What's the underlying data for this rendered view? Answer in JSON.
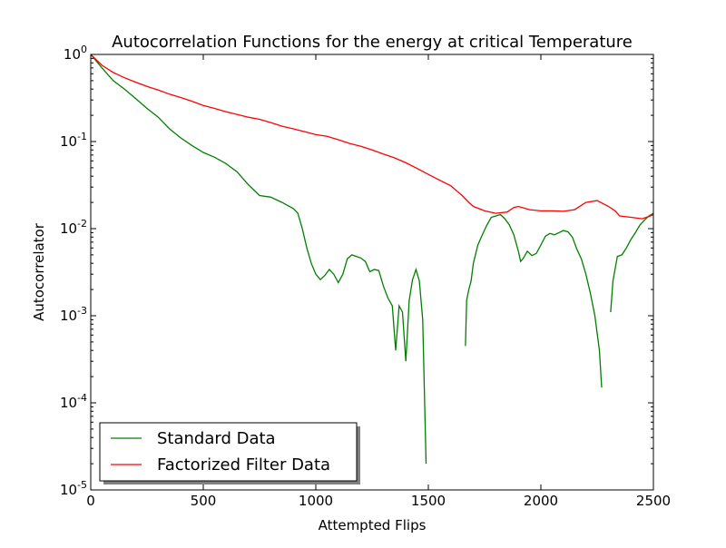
{
  "chart_data": {
    "type": "line",
    "title": "Autocorrelation Functions for the energy at critical Temperature",
    "xlabel": "Attempted Flips",
    "ylabel": "Autocorrelator",
    "xlim": [
      0,
      2500
    ],
    "ylim": [
      1e-05,
      1
    ],
    "yscale": "log",
    "grid": false,
    "legend_position": "lower-left",
    "x_ticks": [
      {
        "value": 0,
        "label": "0"
      },
      {
        "value": 500,
        "label": "500"
      },
      {
        "value": 1000,
        "label": "1000"
      },
      {
        "value": 1500,
        "label": "1500"
      },
      {
        "value": 2000,
        "label": "2000"
      },
      {
        "value": 2500,
        "label": "2500"
      }
    ],
    "y_ticks": [
      {
        "value": 1,
        "base": "10",
        "exp": "0"
      },
      {
        "value": 0.1,
        "base": "10",
        "exp": "-1"
      },
      {
        "value": 0.01,
        "base": "10",
        "exp": "-2"
      },
      {
        "value": 0.001,
        "base": "10",
        "exp": "-3"
      },
      {
        "value": 0.0001,
        "base": "10",
        "exp": "-4"
      },
      {
        "value": 1e-05,
        "base": "10",
        "exp": "-5"
      }
    ],
    "series": [
      {
        "name": "Standard Data",
        "color": "#008000",
        "segments": [
          [
            [
              0,
              1.0
            ],
            [
              50,
              0.7
            ],
            [
              100,
              0.5
            ],
            [
              150,
              0.4
            ],
            [
              200,
              0.31
            ],
            [
              250,
              0.24
            ],
            [
              300,
              0.19
            ],
            [
              350,
              0.14
            ],
            [
              400,
              0.11
            ],
            [
              450,
              0.09
            ],
            [
              500,
              0.075
            ],
            [
              550,
              0.066
            ],
            [
              600,
              0.056
            ],
            [
              650,
              0.045
            ],
            [
              700,
              0.032
            ],
            [
              750,
              0.024
            ],
            [
              800,
              0.023
            ],
            [
              850,
              0.02
            ],
            [
              900,
              0.017
            ],
            [
              920,
              0.015
            ],
            [
              940,
              0.01
            ],
            [
              960,
              0.006
            ],
            [
              980,
              0.004
            ],
            [
              1000,
              0.003
            ],
            [
              1020,
              0.0026
            ],
            [
              1040,
              0.0029
            ],
            [
              1060,
              0.0034
            ],
            [
              1080,
              0.003
            ],
            [
              1100,
              0.0024
            ],
            [
              1120,
              0.003
            ],
            [
              1140,
              0.0045
            ],
            [
              1160,
              0.005
            ],
            [
              1180,
              0.0048
            ],
            [
              1200,
              0.0046
            ],
            [
              1220,
              0.0042
            ],
            [
              1240,
              0.0032
            ],
            [
              1260,
              0.0034
            ],
            [
              1280,
              0.0033
            ],
            [
              1300,
              0.0022
            ],
            [
              1320,
              0.0016
            ],
            [
              1340,
              0.0013
            ],
            [
              1355,
              0.0004
            ],
            [
              1370,
              0.0013
            ],
            [
              1385,
              0.0011
            ],
            [
              1400,
              0.0003
            ],
            [
              1415,
              0.0015
            ],
            [
              1430,
              0.0026
            ],
            [
              1445,
              0.0034
            ],
            [
              1460,
              0.0025
            ],
            [
              1475,
              0.0009
            ],
            [
              1490,
              2e-05
            ]
          ],
          [
            [
              1665,
              0.00045
            ],
            [
              1670,
              0.0015
            ],
            [
              1680,
              0.002
            ],
            [
              1690,
              0.0025
            ],
            [
              1700,
              0.004
            ],
            [
              1720,
              0.0065
            ],
            [
              1740,
              0.0085
            ],
            [
              1760,
              0.011
            ],
            [
              1780,
              0.0135
            ],
            [
              1800,
              0.014
            ],
            [
              1820,
              0.0145
            ],
            [
              1840,
              0.013
            ],
            [
              1860,
              0.011
            ],
            [
              1880,
              0.0085
            ],
            [
              1900,
              0.0055
            ],
            [
              1910,
              0.0042
            ],
            [
              1920,
              0.0045
            ],
            [
              1940,
              0.0055
            ],
            [
              1960,
              0.0049
            ],
            [
              1980,
              0.0052
            ],
            [
              2000,
              0.0065
            ],
            [
              2020,
              0.0082
            ],
            [
              2040,
              0.0088
            ],
            [
              2060,
              0.0085
            ],
            [
              2080,
              0.009
            ],
            [
              2100,
              0.0095
            ],
            [
              2120,
              0.0092
            ],
            [
              2140,
              0.008
            ],
            [
              2160,
              0.0058
            ],
            [
              2180,
              0.0045
            ],
            [
              2200,
              0.003
            ],
            [
              2220,
              0.0018
            ],
            [
              2240,
              0.001
            ],
            [
              2260,
              0.0004
            ],
            [
              2270,
              0.00015
            ]
          ],
          [
            [
              2310,
              0.0011
            ],
            [
              2320,
              0.0025
            ],
            [
              2340,
              0.0048
            ],
            [
              2360,
              0.005
            ],
            [
              2380,
              0.006
            ],
            [
              2400,
              0.0075
            ],
            [
              2420,
              0.009
            ],
            [
              2440,
              0.011
            ],
            [
              2460,
              0.0125
            ],
            [
              2480,
              0.014
            ],
            [
              2500,
              0.015
            ]
          ]
        ]
      },
      {
        "name": "Factorized Filter Data",
        "color": "#ff0000",
        "segments": [
          [
            [
              0,
              1.0
            ],
            [
              50,
              0.75
            ],
            [
              100,
              0.62
            ],
            [
              150,
              0.54
            ],
            [
              200,
              0.48
            ],
            [
              250,
              0.43
            ],
            [
              300,
              0.39
            ],
            [
              350,
              0.35
            ],
            [
              400,
              0.32
            ],
            [
              450,
              0.29
            ],
            [
              500,
              0.26
            ],
            [
              550,
              0.24
            ],
            [
              600,
              0.22
            ],
            [
              650,
              0.205
            ],
            [
              700,
              0.19
            ],
            [
              750,
              0.18
            ],
            [
              800,
              0.165
            ],
            [
              850,
              0.15
            ],
            [
              900,
              0.14
            ],
            [
              950,
              0.13
            ],
            [
              1000,
              0.12
            ],
            [
              1050,
              0.115
            ],
            [
              1100,
              0.105
            ],
            [
              1150,
              0.095
            ],
            [
              1200,
              0.088
            ],
            [
              1250,
              0.08
            ],
            [
              1300,
              0.072
            ],
            [
              1350,
              0.065
            ],
            [
              1400,
              0.057
            ],
            [
              1450,
              0.049
            ],
            [
              1500,
              0.042
            ],
            [
              1550,
              0.036
            ],
            [
              1600,
              0.031
            ],
            [
              1650,
              0.024
            ],
            [
              1680,
              0.02
            ],
            [
              1700,
              0.018
            ],
            [
              1750,
              0.016
            ],
            [
              1800,
              0.015
            ],
            [
              1850,
              0.0155
            ],
            [
              1880,
              0.0175
            ],
            [
              1900,
              0.018
            ],
            [
              1950,
              0.0165
            ],
            [
              2000,
              0.016
            ],
            [
              2050,
              0.016
            ],
            [
              2100,
              0.0158
            ],
            [
              2150,
              0.0165
            ],
            [
              2200,
              0.02
            ],
            [
              2250,
              0.021
            ],
            [
              2300,
              0.018
            ],
            [
              2330,
              0.016
            ],
            [
              2350,
              0.014
            ],
            [
              2400,
              0.0135
            ],
            [
              2450,
              0.013
            ],
            [
              2480,
              0.0138
            ],
            [
              2500,
              0.0145
            ]
          ]
        ]
      }
    ]
  }
}
